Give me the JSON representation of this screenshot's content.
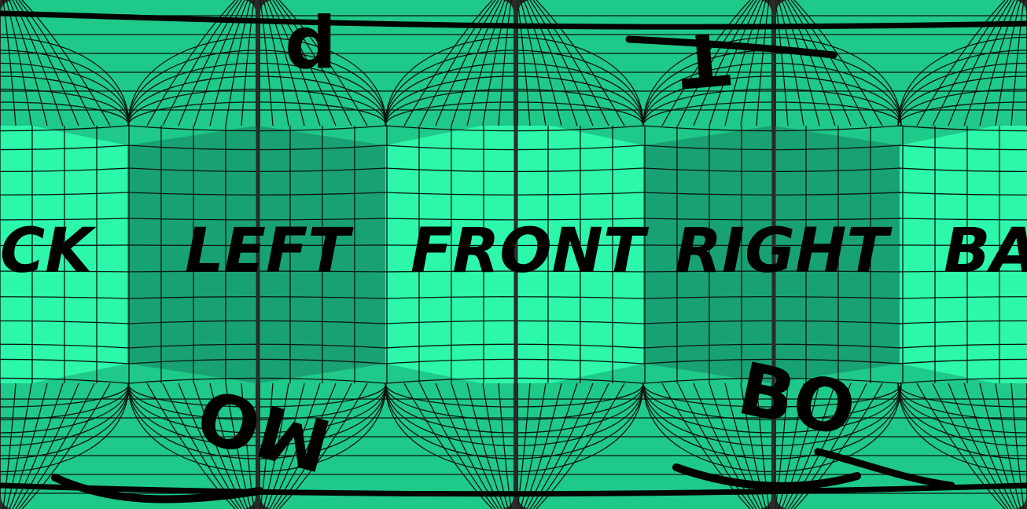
{
  "panorama": {
    "face_labels": {
      "back_left": "CK",
      "left": "LEFT",
      "front": "FRONT",
      "right": "RIGHT",
      "back_right": "BA"
    },
    "top_fragments": [
      "p",
      "T"
    ],
    "bottom_fragments": [
      "MO",
      "BO"
    ]
  },
  "colors": {
    "background": "#2a2a2a",
    "pole_green": "#1fc98a",
    "front_back_green": "#2cf7aa",
    "side_green": "#18a274",
    "grid_line": "#0c1410",
    "text": "#000000"
  }
}
